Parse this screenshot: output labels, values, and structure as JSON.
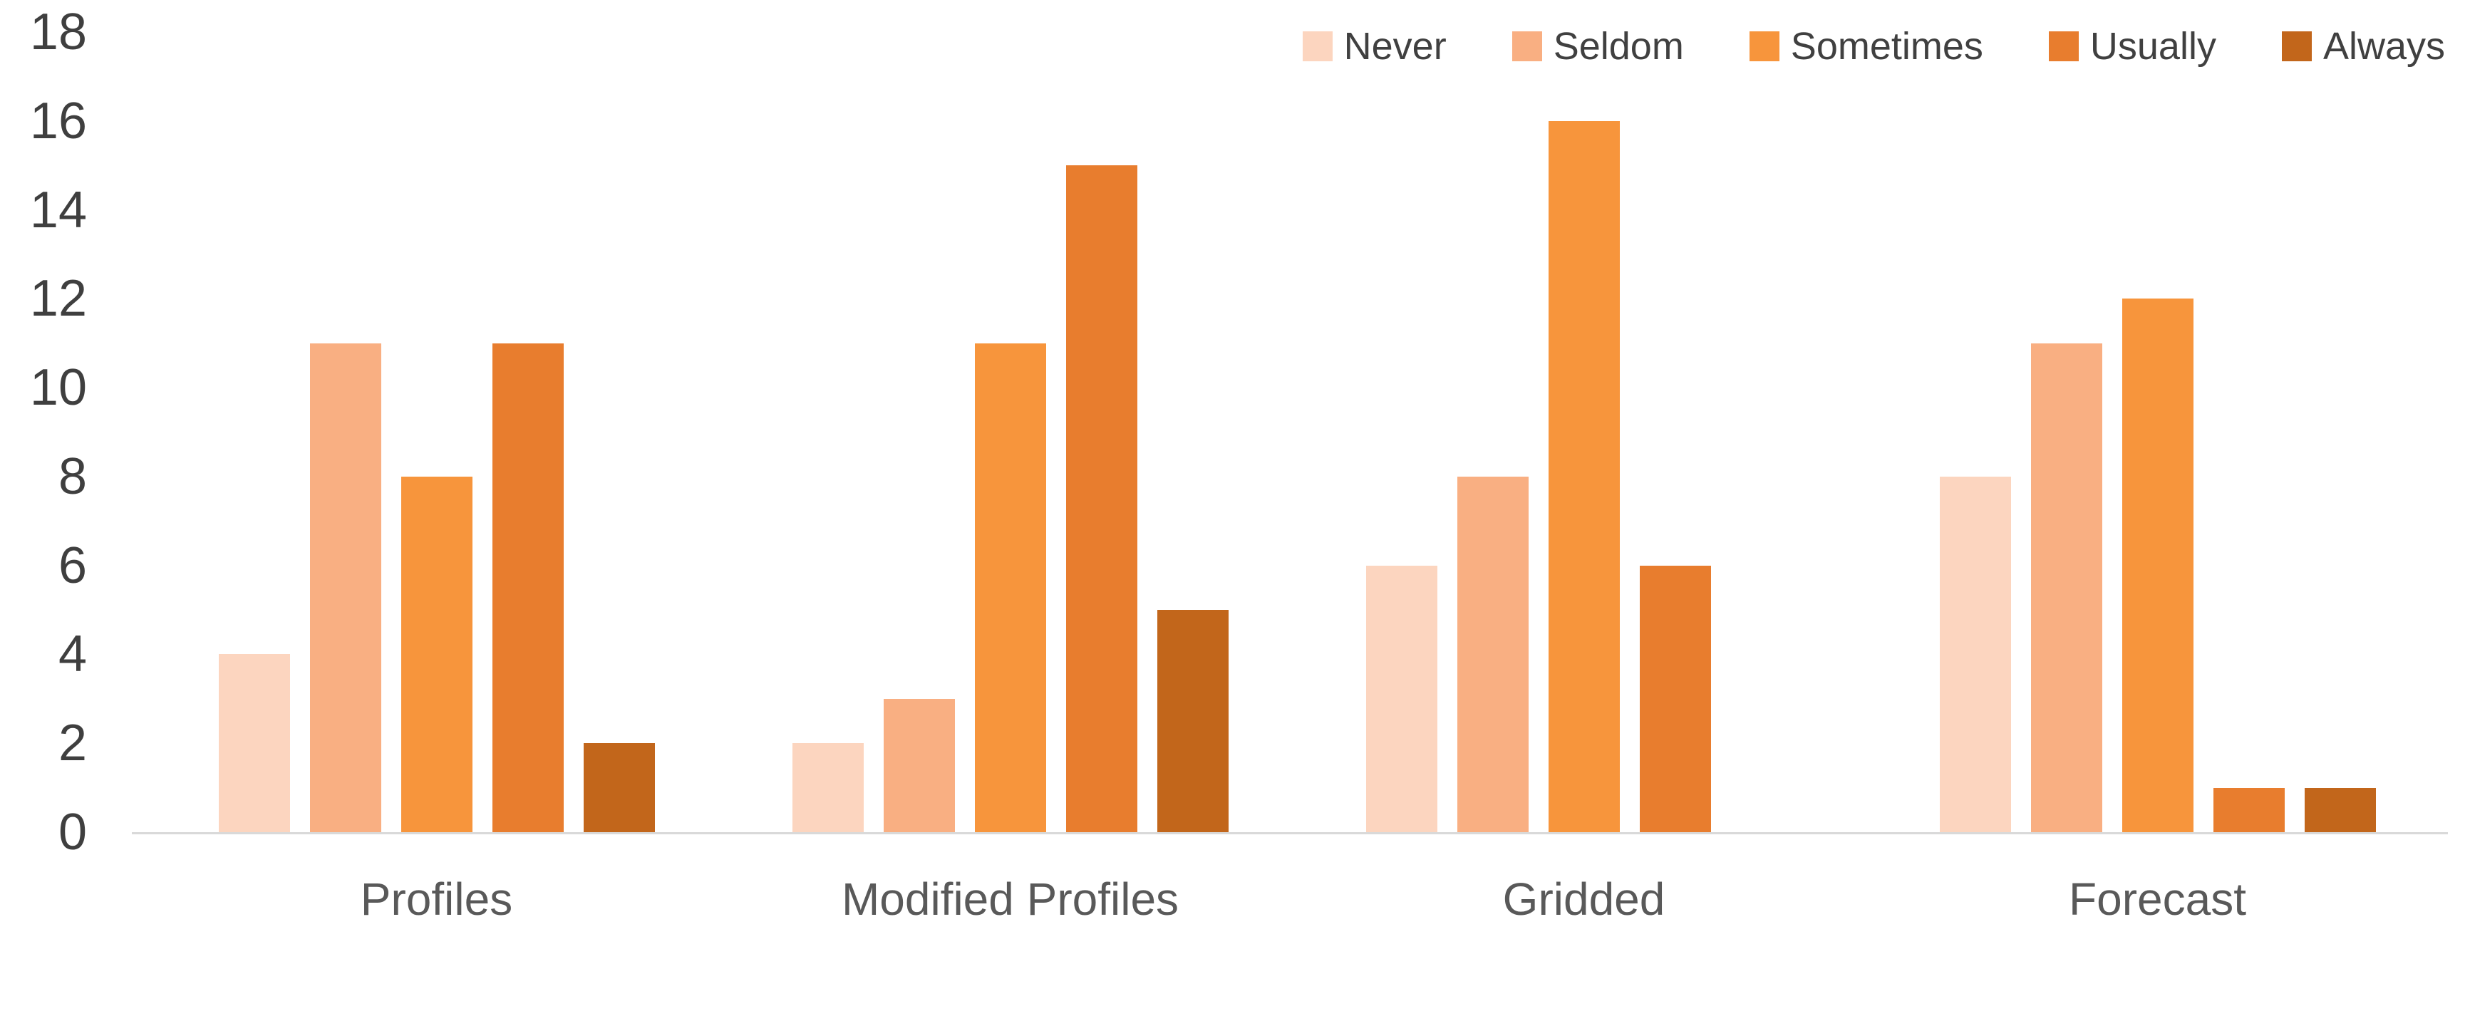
{
  "chart_data": {
    "type": "bar",
    "title": "",
    "xlabel": "",
    "ylabel": "",
    "categories": [
      "Profiles",
      "Modified Profiles",
      "Gridded",
      "Forecast"
    ],
    "series": [
      {
        "name": "Never",
        "color": "#FCD5BF",
        "values": [
          4,
          2,
          6,
          8
        ]
      },
      {
        "name": "Seldom",
        "color": "#F9AF82",
        "values": [
          11,
          3,
          8,
          11
        ]
      },
      {
        "name": "Sometimes",
        "color": "#F7953C",
        "values": [
          8,
          11,
          16,
          12
        ]
      },
      {
        "name": "Usually",
        "color": "#E87D2E",
        "values": [
          11,
          15,
          6,
          1
        ]
      },
      {
        "name": "Always",
        "color": "#C2661B",
        "values": [
          2,
          5,
          0,
          1
        ]
      }
    ],
    "ylim": [
      0,
      18
    ],
    "ytick_step": 2,
    "ytick_labels": [
      "0",
      "2",
      "4",
      "6",
      "8",
      "10",
      "12",
      "14",
      "16",
      "18"
    ],
    "grid": false,
    "legend_position": "top-right",
    "colors": {
      "tick_label": "#3F3F3F",
      "category_label": "#595959",
      "legend_label": "#404040",
      "axis_line": "#D9D9D9",
      "background": "#FFFFFF"
    }
  }
}
